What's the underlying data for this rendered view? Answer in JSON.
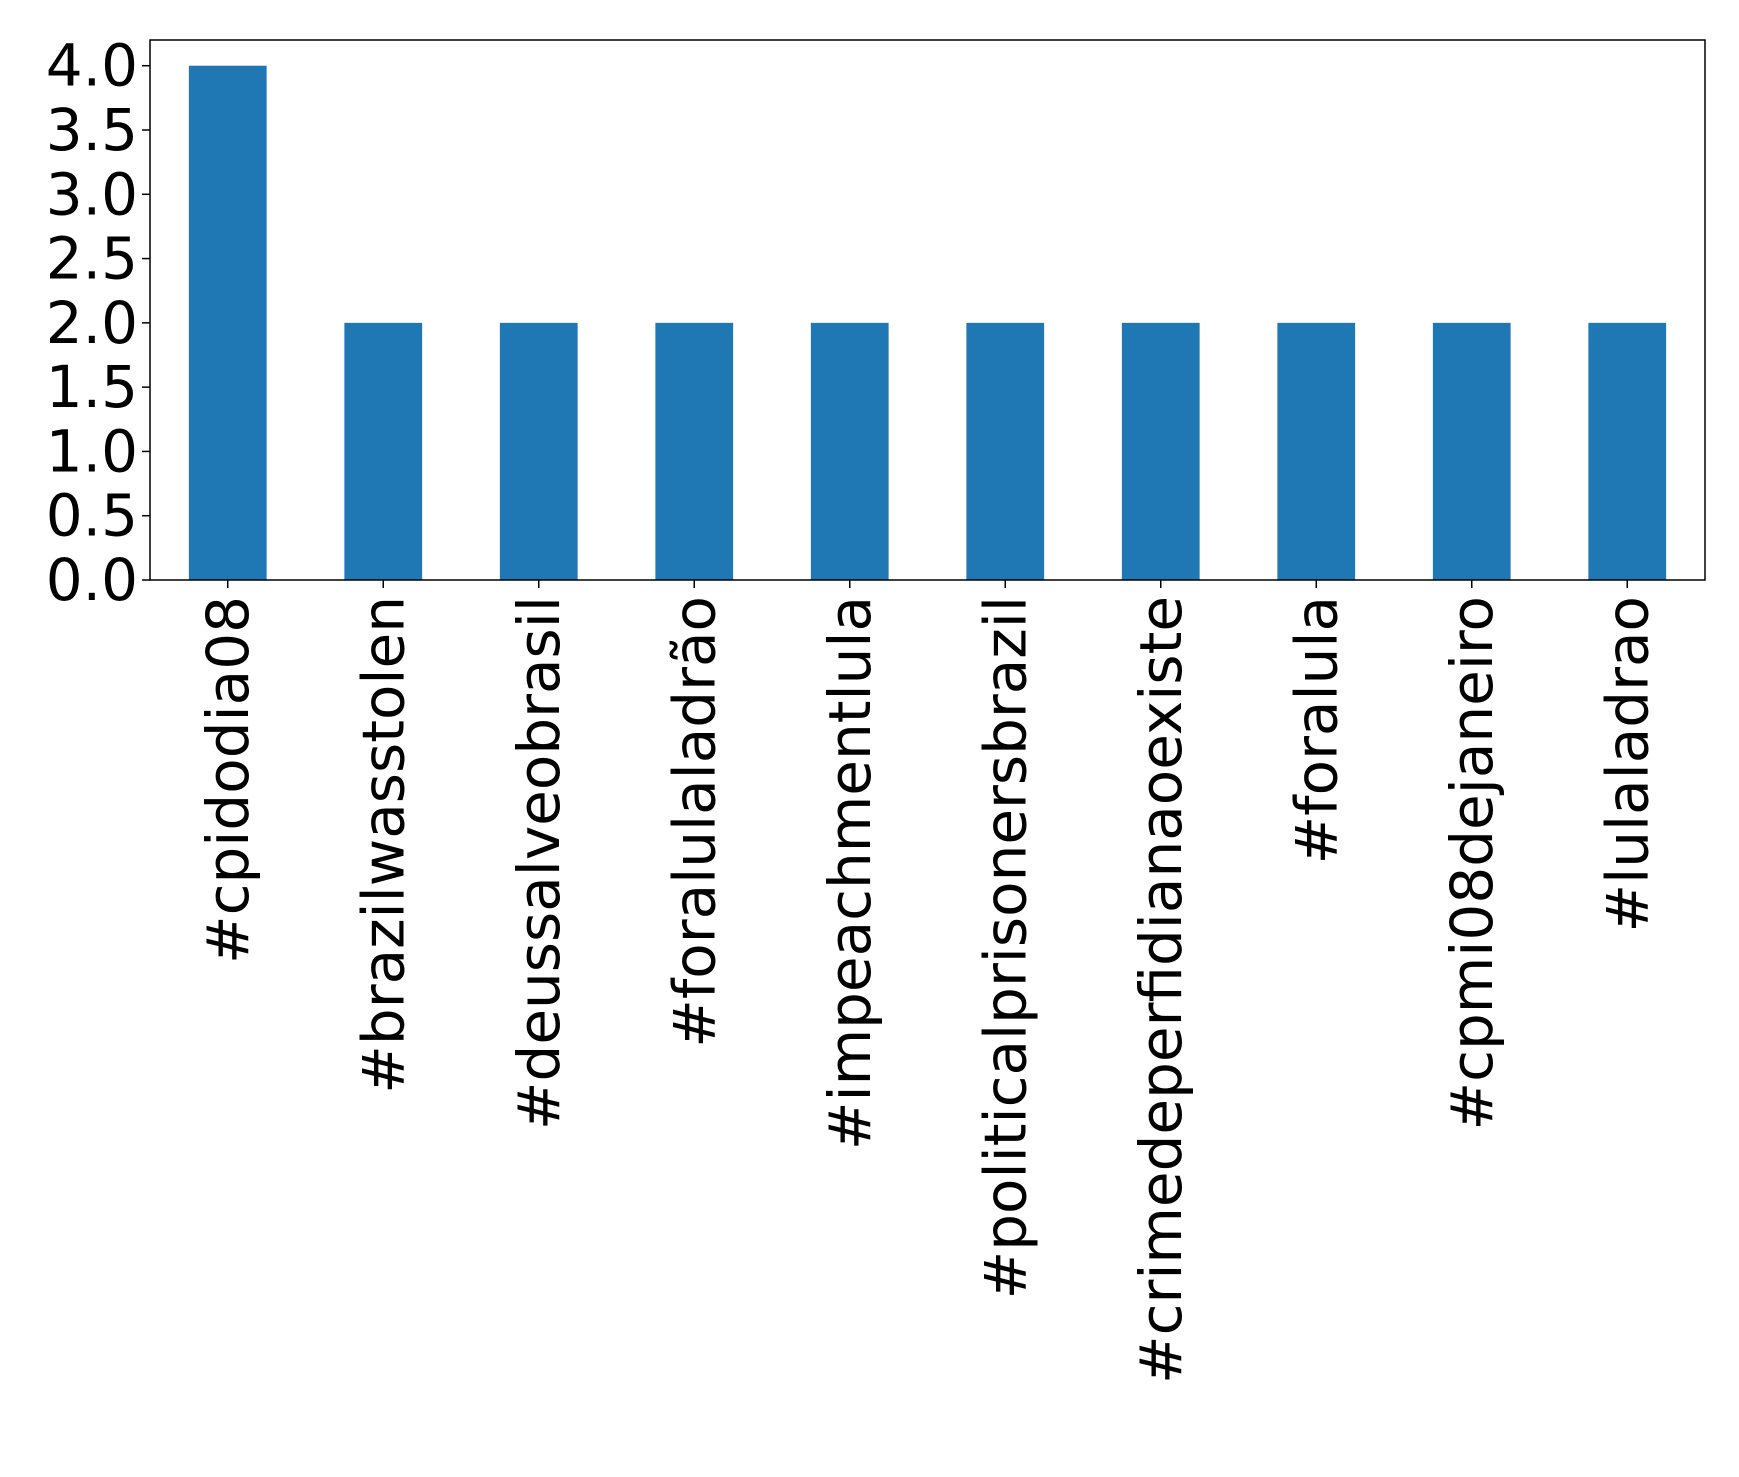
{
  "chart_data": {
    "type": "bar",
    "title": "",
    "xlabel": "",
    "ylabel": "",
    "categories": [
      "#cpidodia08",
      "#brazilwasstolen",
      "#deussalveobrasil",
      "#foralulaladrão",
      "#impeachmentlula",
      "#politicalprisonersbrazil",
      "#crimedeperfidianaoexiste",
      "#foralula",
      "#cpmi08dejaneiro",
      "#lulaladrao"
    ],
    "values": [
      4,
      2,
      2,
      2,
      2,
      2,
      2,
      2,
      2,
      2
    ],
    "ylim": [
      0,
      4.2
    ],
    "yticks": [
      0,
      0.5,
      1,
      1.5,
      2,
      2.5,
      3,
      3.5,
      4
    ],
    "ytick_labels": [
      "0.0",
      "0.5",
      "1.0",
      "1.5",
      "2.0",
      "2.5",
      "3.0",
      "3.5",
      "4.0"
    ],
    "bar_color": "#1f77b4",
    "grid": false,
    "legend": "none"
  }
}
